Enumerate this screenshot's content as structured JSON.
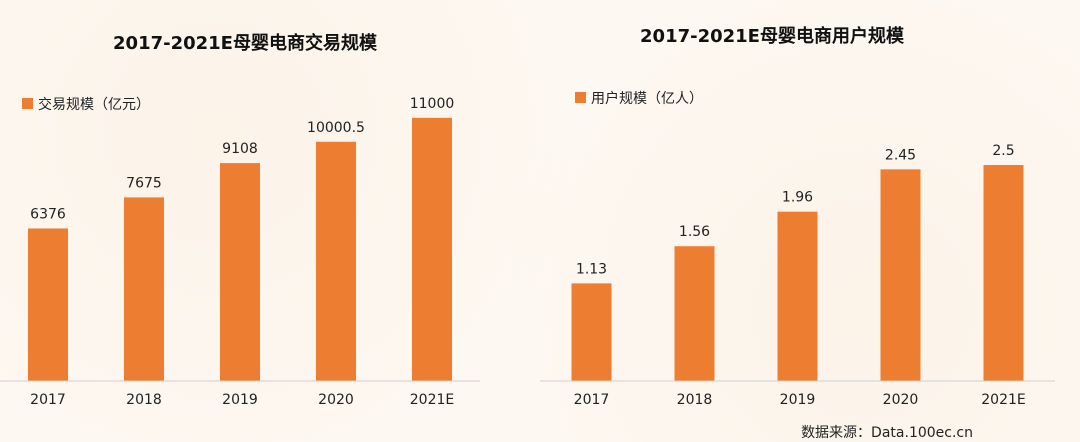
{
  "colors": {
    "bar": "#ed7d31",
    "text": "#222222",
    "axis": "#cfcfcf",
    "background": "#fdf8f2"
  },
  "chart_data": [
    {
      "type": "bar",
      "title": "2017-2021E母婴电商交易规模",
      "legend": "交易规模（亿元）",
      "categories": [
        "2017",
        "2018",
        "2019",
        "2020",
        "2021E"
      ],
      "values": [
        6376,
        7675,
        9108,
        10000.5,
        11000
      ],
      "value_labels": [
        "6376",
        "7675",
        "9108",
        "10000.5",
        "11000"
      ],
      "ylim": [
        0,
        13000
      ],
      "xlabel": "",
      "ylabel": "",
      "grid": false
    },
    {
      "type": "bar",
      "title": "2017-2021E母婴电商用户规模",
      "legend": "用户规模（亿人）",
      "categories": [
        "2017",
        "2018",
        "2019",
        "2020",
        "2021E"
      ],
      "values": [
        1.13,
        1.56,
        1.96,
        2.45,
        2.5
      ],
      "value_labels": [
        "1.13",
        "1.56",
        "1.96",
        "2.45",
        "2.5"
      ],
      "ylim": [
        0,
        3.6
      ],
      "xlabel": "",
      "ylabel": "",
      "grid": false
    }
  ],
  "source": "数据来源：Data.100ec.cn"
}
